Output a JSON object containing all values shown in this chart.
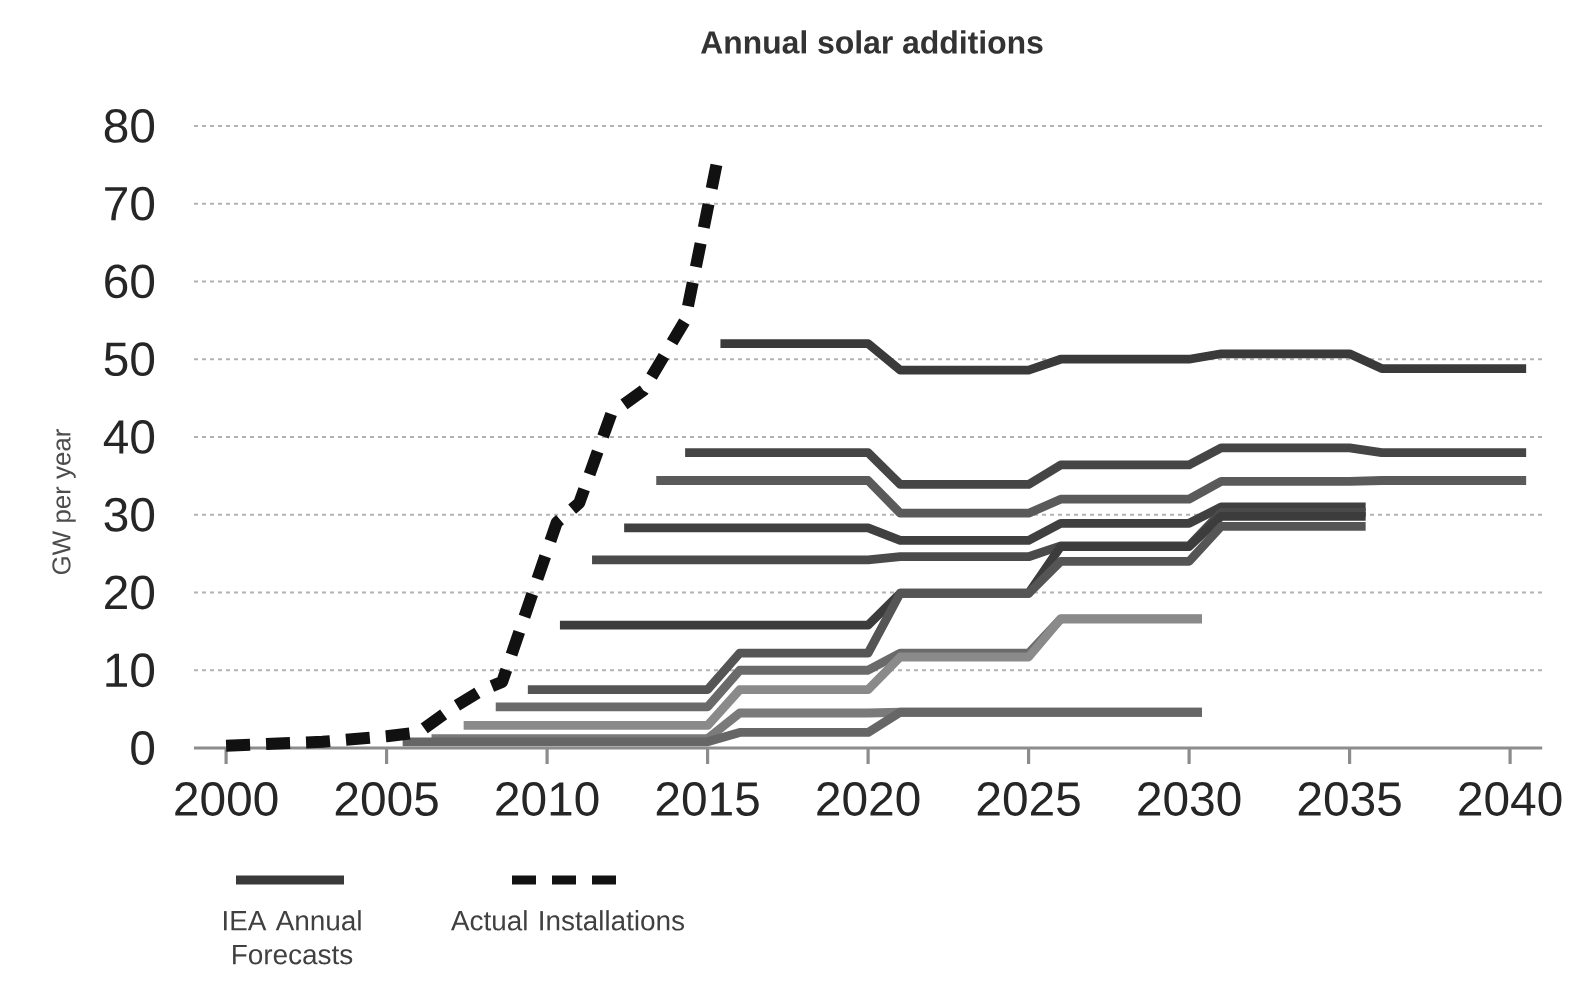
{
  "chart_data": {
    "type": "line",
    "title": "Annual solar additions",
    "ylabel": "GW per year",
    "xlim": [
      1999,
      2041
    ],
    "ylim": [
      0,
      80
    ],
    "xticks": [
      2000,
      2005,
      2010,
      2015,
      2020,
      2025,
      2030,
      2035,
      2040
    ],
    "yticks": [
      0,
      10,
      20,
      30,
      40,
      50,
      60,
      70,
      80
    ],
    "grid": "y",
    "legend": "bottom left",
    "marker": "none",
    "line_style": "solid",
    "series": [
      {
        "name": "IEA Annual Forecasts",
        "color": "#3a3a3a",
        "x": [
          2015.4,
          2020,
          2021,
          2025,
          2026,
          2030,
          2031,
          2035,
          2036,
          2040.5
        ],
        "values": [
          52,
          52,
          48.6,
          48.6,
          50,
          50,
          50.7,
          50.7,
          48.8,
          48.8
        ]
      },
      {
        "color": "#454545",
        "x": [
          2014.3,
          2020,
          2021,
          2025,
          2026,
          2030,
          2031,
          2035,
          2036,
          2040.5
        ],
        "values": [
          38,
          38,
          33.9,
          33.9,
          36.4,
          36.4,
          38.6,
          38.6,
          38,
          38
        ]
      },
      {
        "color": "#5a5a5a",
        "x": [
          2013.4,
          2020,
          2021,
          2025,
          2026,
          2030,
          2031,
          2035,
          2036,
          2040.5
        ],
        "values": [
          34.4,
          34.4,
          30.2,
          30.2,
          32,
          32,
          34.3,
          34.3,
          34.4,
          34.4
        ]
      },
      {
        "color": "#404040",
        "x": [
          2012.4,
          2020,
          2021,
          2025,
          2026,
          2030,
          2031,
          2035.5
        ],
        "values": [
          28.3,
          28.3,
          26.7,
          26.7,
          28.9,
          28.9,
          31,
          31
        ]
      },
      {
        "color": "#4a4a4a",
        "x": [
          2011.4,
          2020,
          2021,
          2025,
          2026,
          2030,
          2031,
          2035.5
        ],
        "values": [
          24.2,
          24.2,
          24.6,
          24.6,
          26,
          26,
          30.3,
          30.3
        ]
      },
      {
        "color": "#3c3c3c",
        "x": [
          2010.4,
          2020,
          2021,
          2025,
          2026,
          2030,
          2031,
          2035.5
        ],
        "values": [
          15.8,
          15.8,
          19.9,
          19.9,
          25.9,
          25.9,
          29.8,
          29.8
        ]
      },
      {
        "color": "#555555",
        "x": [
          2009.4,
          2015,
          2016,
          2020,
          2021,
          2025,
          2026,
          2030,
          2031,
          2035.5
        ],
        "values": [
          7.5,
          7.5,
          12.2,
          12.2,
          19.9,
          19.9,
          24,
          24,
          28.5,
          28.5
        ]
      },
      {
        "color": "#6a6a6a",
        "x": [
          2008.4,
          2015,
          2016,
          2020,
          2021,
          2025,
          2026,
          2030.4
        ],
        "values": [
          5.3,
          5.3,
          10,
          10,
          12.2,
          12.2,
          16.6,
          16.6
        ]
      },
      {
        "color": "#8a8a8a",
        "x": [
          2007.4,
          2015,
          2016,
          2020,
          2021,
          2025,
          2026,
          2030.4
        ],
        "values": [
          2.9,
          2.9,
          7.5,
          7.5,
          11.7,
          11.7,
          16.6,
          16.6
        ]
      },
      {
        "color": "#7a7a7a",
        "x": [
          2006.4,
          2015,
          2016,
          2020,
          2021,
          2030.4
        ],
        "values": [
          1.2,
          1.2,
          4.5,
          4.5,
          4.6,
          4.6
        ]
      },
      {
        "color": "#666666",
        "x": [
          2005.5,
          2015,
          2016,
          2020,
          2021,
          2030.4
        ],
        "values": [
          0.8,
          0.8,
          2,
          2,
          4.6,
          4.6
        ]
      },
      {
        "name": "Actual Installations",
        "color": "#111111",
        "line_style": "dashed",
        "x": [
          2000,
          2003,
          2005,
          2006,
          2007,
          2008,
          2008.6,
          2010.3,
          2011,
          2012,
          2013,
          2014.3,
          2015.3
        ],
        "values": [
          0.3,
          0.8,
          1.5,
          2,
          5,
          7.5,
          8.5,
          29,
          31.5,
          43,
          46,
          55,
          75.5
        ]
      }
    ]
  }
}
